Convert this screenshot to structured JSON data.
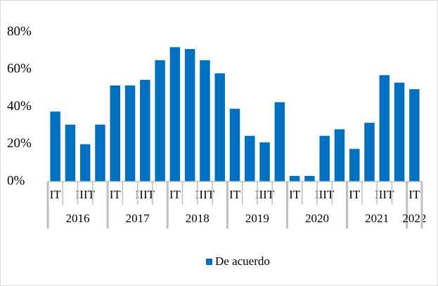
{
  "chart_data": {
    "type": "bar",
    "categories": [
      "IT",
      null,
      "IIIT",
      null,
      "IT",
      null,
      "IIIT",
      null,
      "IT",
      null,
      "IIIT",
      null,
      "IT",
      null,
      "IIIT",
      null,
      "IT",
      null,
      "IIIT",
      null,
      "IT",
      null,
      "IIIT",
      null,
      "IT"
    ],
    "x_groups": [
      {
        "label": "2016",
        "size": 4
      },
      {
        "label": "2017",
        "size": 4
      },
      {
        "label": "2018",
        "size": 4
      },
      {
        "label": "2019",
        "size": 4
      },
      {
        "label": "2020",
        "size": 4
      },
      {
        "label": "2021",
        "size": 4
      },
      {
        "label": "2022",
        "size": 1
      }
    ],
    "series": [
      {
        "name": "De acuerdo",
        "color": "#0070c0",
        "values": [
          37.5,
          30.5,
          20,
          30.5,
          51.5,
          51.5,
          54.5,
          65,
          72,
          71,
          65,
          58,
          39,
          24.5,
          21,
          42.5,
          3,
          3,
          24.5,
          28,
          17.5,
          31.5,
          57,
          53,
          49.5
        ]
      }
    ],
    "ylim": [
      0,
      80
    ],
    "yticks": [
      {
        "value": 0,
        "label": "0%"
      },
      {
        "value": 20,
        "label": "20%"
      },
      {
        "value": 40,
        "label": "40%"
      },
      {
        "value": 60,
        "label": "60%"
      },
      {
        "value": 80,
        "label": "80%"
      }
    ],
    "grid": false,
    "legend": "bottom"
  }
}
